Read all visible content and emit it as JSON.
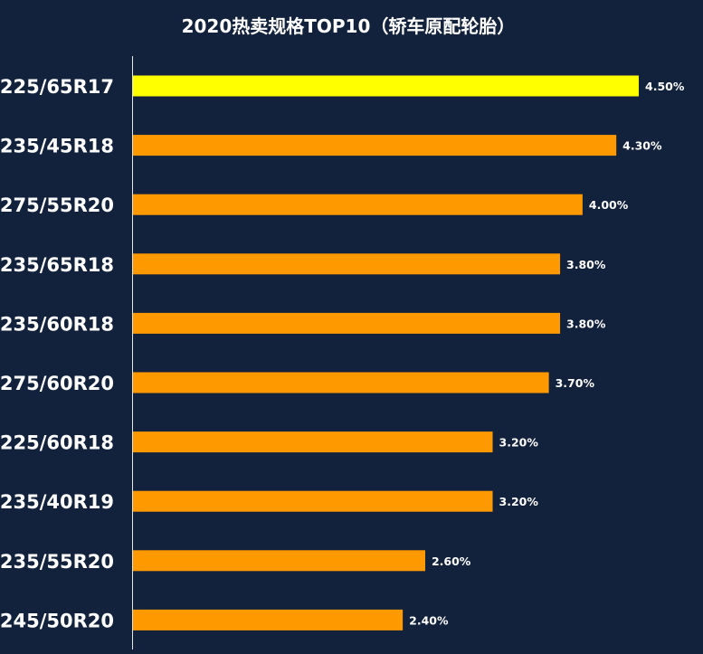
{
  "chart_data": {
    "type": "bar",
    "orientation": "horizontal",
    "title": "2020热卖规格TOP10（轿车原配轮胎）",
    "categories": [
      "225/65R17",
      "235/45R18",
      "275/55R20",
      "235/65R18",
      "235/60R18",
      "275/60R20",
      "225/60R18",
      "235/40R19",
      "235/55R20",
      "245/50R20"
    ],
    "values": [
      4.5,
      4.3,
      4.0,
      3.8,
      3.8,
      3.7,
      3.2,
      3.2,
      2.6,
      2.4
    ],
    "value_labels": [
      "4.50%",
      "4.30%",
      "4.00%",
      "3.80%",
      "3.80%",
      "3.70%",
      "3.20%",
      "3.20%",
      "2.60%",
      "2.40%"
    ],
    "unit": "%",
    "xlim": [
      0,
      4.5
    ],
    "grid": false,
    "colors": {
      "background": "#13223c",
      "bar": "#ff9900",
      "highlight_bar": "#ffff00",
      "axis": "#e6e6e6",
      "text": "#ffffff"
    },
    "highlight_index": 0
  }
}
